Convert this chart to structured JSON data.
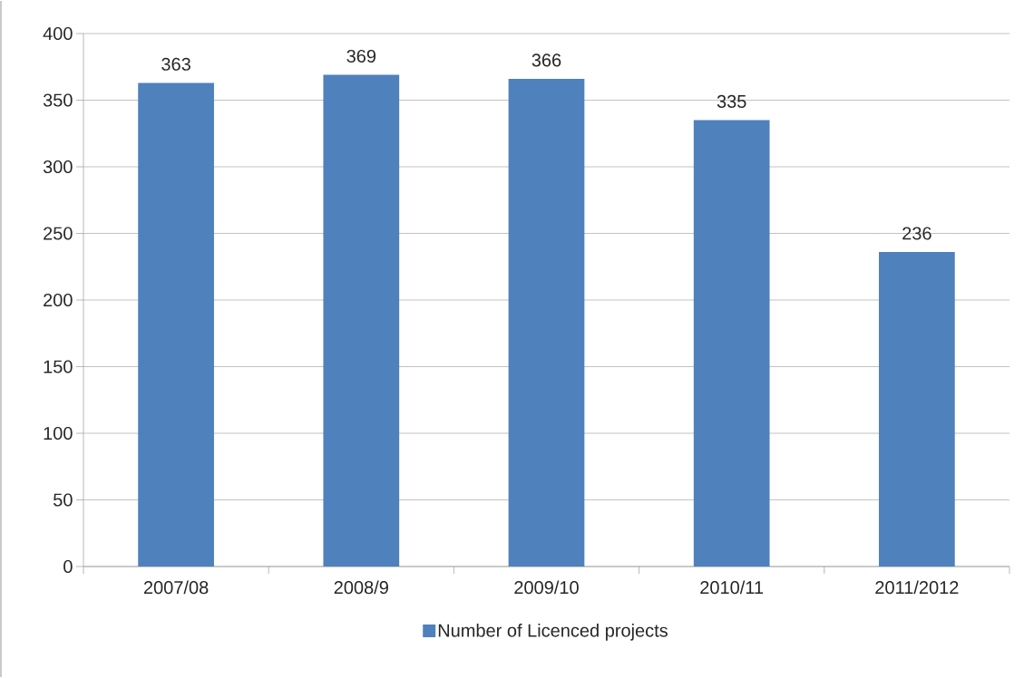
{
  "chart_data": {
    "type": "bar",
    "categories": [
      "2007/08",
      "2008/9",
      "2009/10",
      "2010/11",
      "2011/2012"
    ],
    "series": [
      {
        "name": "Number of Licenced projects",
        "color": "#4f81bd",
        "values": [
          363,
          369,
          366,
          335,
          236
        ]
      }
    ],
    "ylim": [
      0,
      400
    ],
    "yticks": [
      0,
      50,
      100,
      150,
      200,
      250,
      300,
      350,
      400
    ],
    "grid": "y",
    "legend": "bottom",
    "data_labels": true
  }
}
